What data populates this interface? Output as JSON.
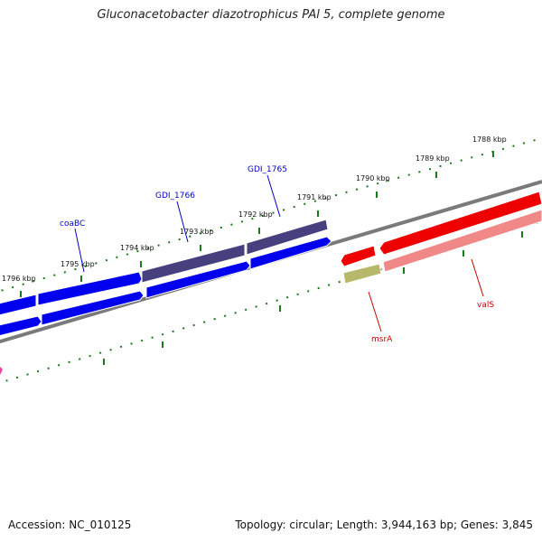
{
  "title": "Gluconacetobacter diazotrophicus PAl 5, complete genome",
  "footer": {
    "accession": "Accession: NC_010125",
    "topology": "Topology: circular; Length: 3,944,163 bp; Genes: 3,845"
  },
  "kbp_ticks": [
    "1796 kbp",
    "1795 kbp",
    "1794 kbp",
    "1793 kbp",
    "1792 kbp",
    "1791 kbp",
    "1790 kbp",
    "1789 kbp",
    "1788 kbp"
  ],
  "gene_labels": [
    "coaBC",
    "GDI_1766",
    "GDI_1765",
    "msrA",
    "valS"
  ],
  "colors": {
    "forward_cds": "#0000ee",
    "forward_cds_top": "#46407e",
    "reverse_cds": "#ee0000",
    "reverse_cds_light": "#f08888",
    "olive_feature": "#b8b86a",
    "pink_feature": "#e83fa0",
    "backbone": "#7a7a7a",
    "gc_ticks": "#1a7a1a",
    "forward_label": "#0000cc",
    "reverse_label": "#cc0000"
  }
}
